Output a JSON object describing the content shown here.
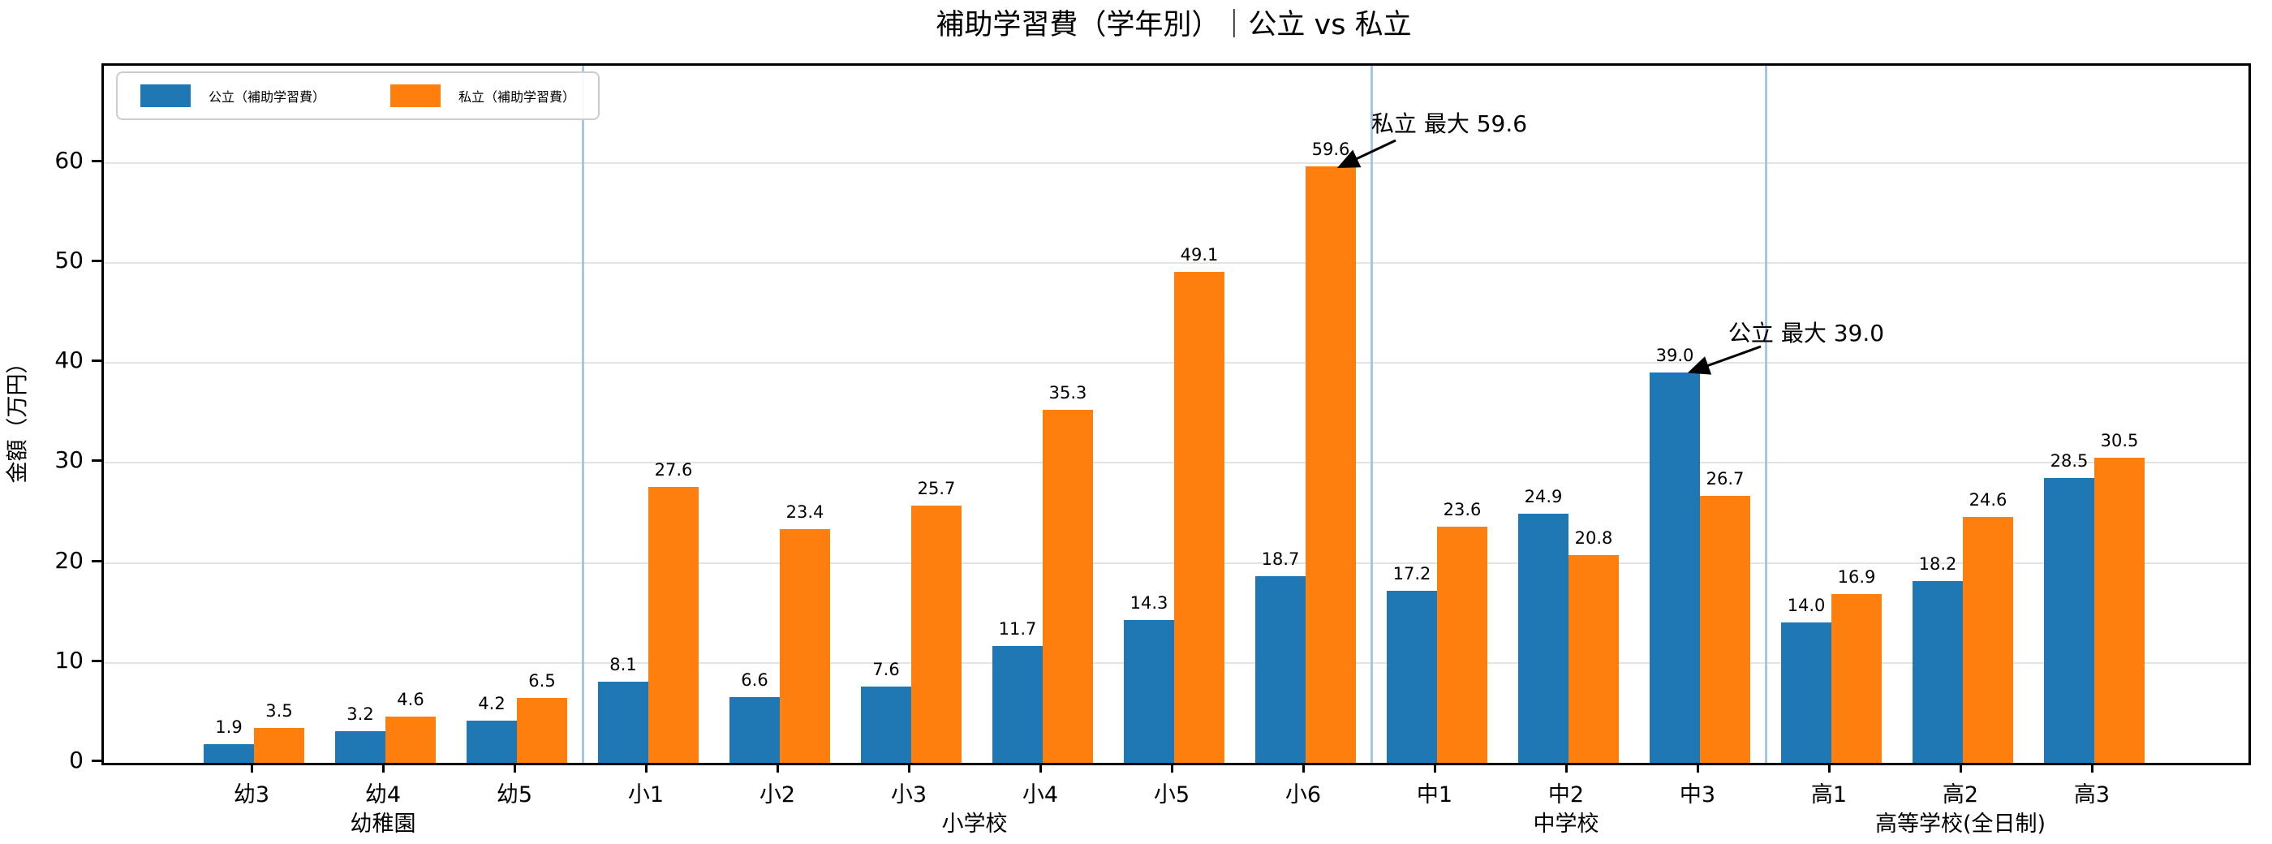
{
  "title": "補助学習費（学年別）｜公立 vs 私立",
  "chart_data": {
    "type": "bar",
    "title": "補助学習費（学年別）｜公立 vs 私立",
    "ylabel": "金額（万円）",
    "xlabel": "",
    "ylim": [
      0,
      69.7
    ],
    "yticks": [
      0,
      10,
      20,
      30,
      40,
      50,
      60
    ],
    "grid": "horizontal",
    "legend_position": "upper-left",
    "categories": [
      "幼3",
      "幼4",
      "幼5",
      "小1",
      "小2",
      "小3",
      "小4",
      "小5",
      "小6",
      "中1",
      "中2",
      "中3",
      "高1",
      "高2",
      "高3"
    ],
    "series": [
      {
        "name": "公立（補助学習費）",
        "color": "#1f77b4",
        "values": [
          1.9,
          3.2,
          4.2,
          8.1,
          6.6,
          7.6,
          11.7,
          14.3,
          18.7,
          17.2,
          24.9,
          39.0,
          14.0,
          18.2,
          28.5
        ]
      },
      {
        "name": "私立（補助学習費）",
        "color": "#ff7f0e",
        "values": [
          3.5,
          4.6,
          6.5,
          27.6,
          23.4,
          25.7,
          35.3,
          49.1,
          59.6,
          23.6,
          20.8,
          26.7,
          16.9,
          24.6,
          30.5
        ]
      }
    ],
    "groups": [
      {
        "label": "幼稚園",
        "start": 0,
        "end": 2
      },
      {
        "label": "小学校",
        "start": 3,
        "end": 8
      },
      {
        "label": "中学校",
        "start": 9,
        "end": 11
      },
      {
        "label": "高等学校(全日制)",
        "start": 12,
        "end": 14
      }
    ],
    "annotations": [
      {
        "text": "私立 最大 59.6",
        "target_category": "小6",
        "target_series": "私立（補助学習費）",
        "target_value": 59.6
      },
      {
        "text": "公立 最大 39.0",
        "target_category": "中3",
        "target_series": "公立（補助学習費）",
        "target_value": 39.0
      }
    ],
    "colors": {
      "public_bar": "#1f77b4",
      "private_bar": "#ff7f0e",
      "group_divider": "#a9c6e0",
      "gridline": "#e3e3e3",
      "axis": "#000000",
      "legend_border": "#cccccc"
    }
  }
}
